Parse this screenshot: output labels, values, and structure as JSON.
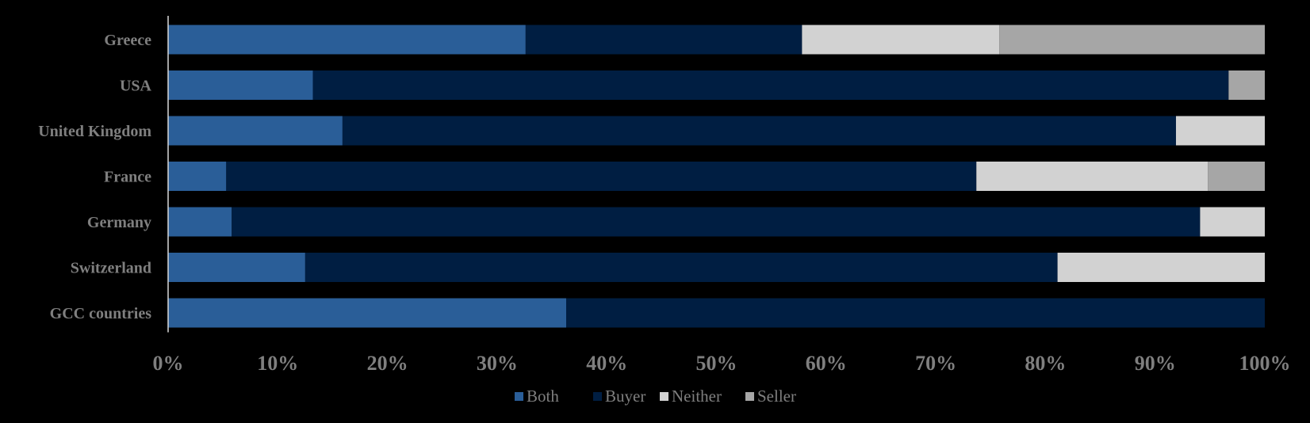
{
  "colors": {
    "background": "#000000",
    "axis": "#d9d9d9",
    "text": "#7f7f7f"
  },
  "chart_data": {
    "type": "bar",
    "orientation": "horizontal",
    "stacked": "percent",
    "title": "",
    "xlabel": "",
    "ylabel": "",
    "xlim": [
      0,
      100
    ],
    "x_ticks": [
      "0%",
      "10%",
      "20%",
      "30%",
      "40%",
      "50%",
      "60%",
      "70%",
      "80%",
      "90%",
      "100%"
    ],
    "grid": false,
    "legend_position": "bottom",
    "categories": [
      "Greece",
      "USA",
      "United Kingdom",
      "France",
      "Germany",
      "Switzerland",
      "GCC countries"
    ],
    "series": [
      {
        "name": "Both",
        "color": "#2a5e98",
        "values": [
          32.6,
          13.2,
          15.9,
          5.3,
          5.8,
          12.5,
          36.3
        ]
      },
      {
        "name": "Buyer",
        "color": "#001e42",
        "values": [
          25.2,
          83.5,
          76.0,
          68.4,
          88.3,
          68.6,
          63.7
        ]
      },
      {
        "name": "Neither",
        "color": "#d2d2d2",
        "values": [
          18.0,
          0.0,
          8.1,
          21.1,
          5.9,
          18.9,
          0.0
        ]
      },
      {
        "name": "Seller",
        "color": "#a6a6a6",
        "values": [
          24.2,
          3.3,
          0.0,
          5.2,
          0.0,
          0.0,
          0.0
        ]
      }
    ]
  }
}
